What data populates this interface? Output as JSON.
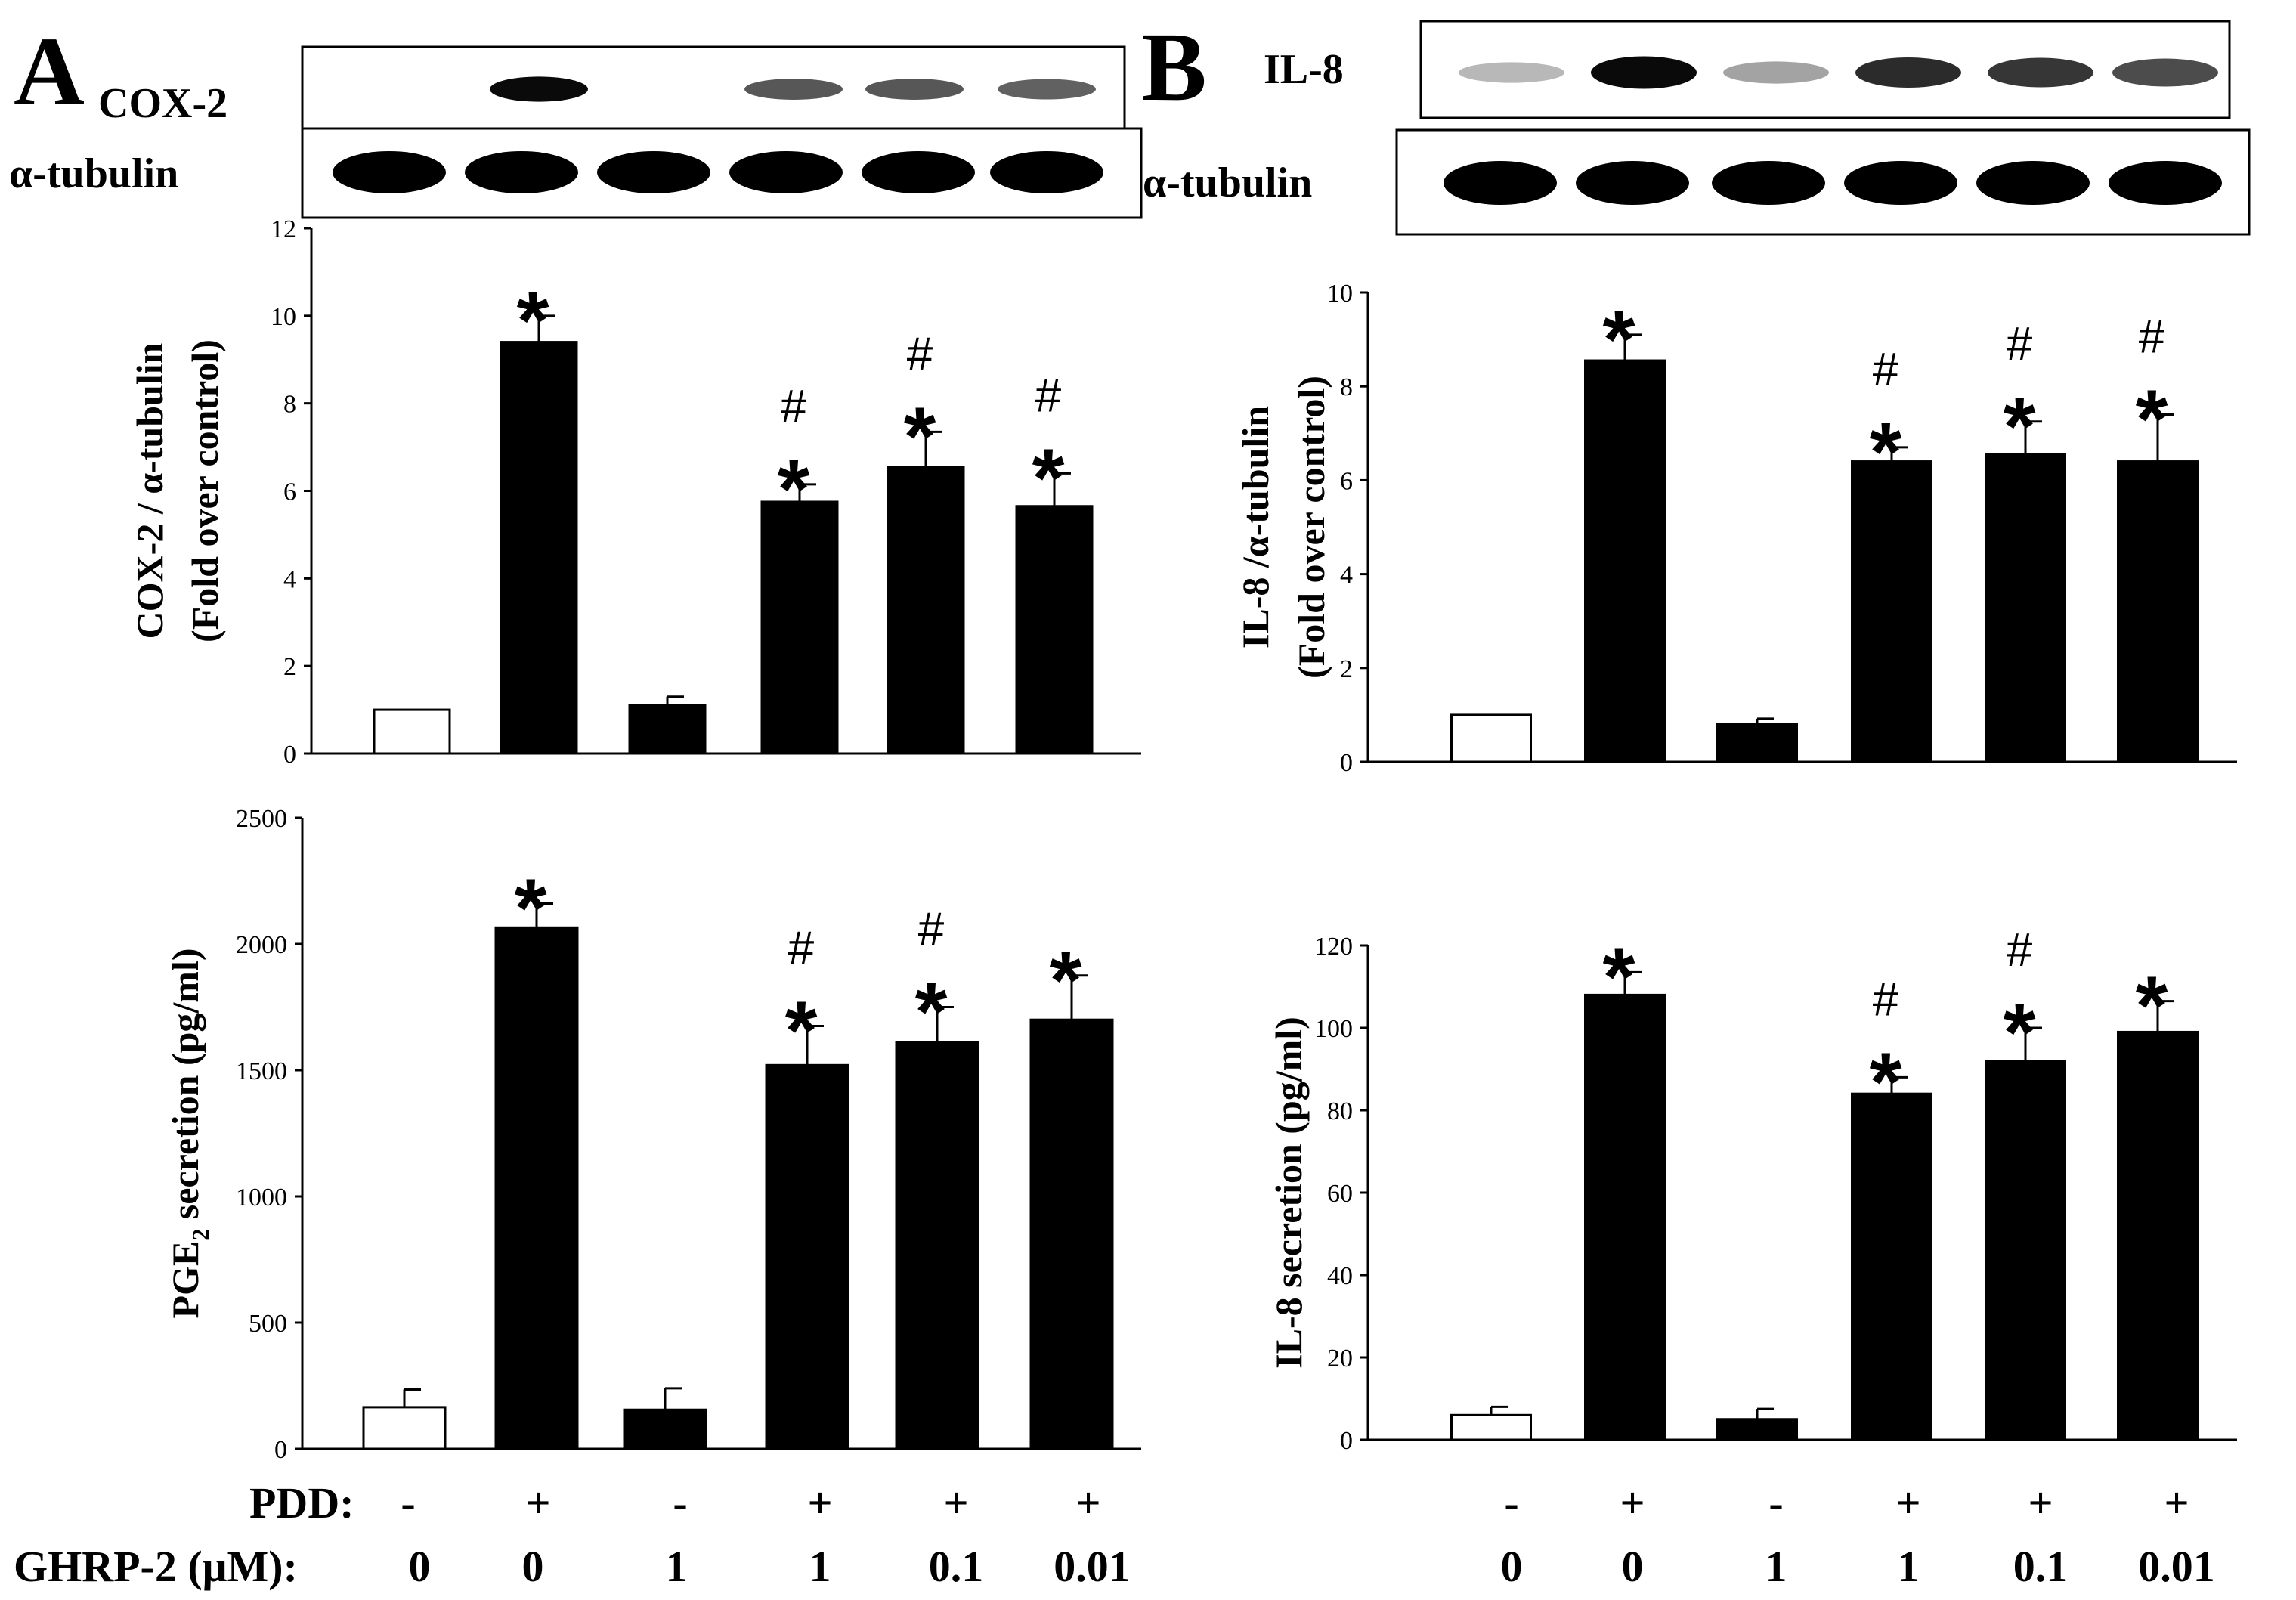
{
  "panels": {
    "A": {
      "letter": "A",
      "blot": {
        "target_label": "COX-2",
        "loading_label": "α-tubulin",
        "target_band_intensity": [
          0,
          0.95,
          0,
          0.6,
          0.6,
          0.55
        ],
        "loading_band_intensity": [
          1,
          1,
          1,
          1,
          1,
          1
        ]
      }
    },
    "B": {
      "letter": "B",
      "blot": {
        "target_label": "IL-8",
        "loading_label": "α-tubulin",
        "target_band_intensity": [
          0.15,
          0.95,
          0.25,
          0.8,
          0.75,
          0.65
        ],
        "loading_band_intensity": [
          1,
          1,
          1,
          1,
          1,
          1
        ]
      }
    }
  },
  "conditions": {
    "pdd_label": "PDD:",
    "ghrp_label": "GHRP-2 (μM):",
    "pdd": [
      "-",
      "+",
      "-",
      "+",
      "+",
      "+"
    ],
    "ghrp": [
      "0",
      "0",
      "1",
      "1",
      "0.1",
      "0.01"
    ]
  },
  "chart_data": [
    {
      "panel": "A",
      "type": "bar",
      "ylabel": "COX-2 / α-tubulin",
      "ylabel2": "(Fold over control)",
      "ylim": [
        0,
        12
      ],
      "yticks": [
        "0",
        "2",
        "4",
        "6",
        "8",
        "10",
        "12"
      ],
      "values": [
        1.0,
        9.4,
        1.1,
        5.75,
        6.55,
        5.65
      ],
      "errors": [
        0,
        0.6,
        0.2,
        0.4,
        0.8,
        0.75
      ],
      "fills": [
        "#ffffff",
        "#000000",
        "#000000",
        "#000000",
        "#000000",
        "#000000"
      ],
      "star": [
        false,
        true,
        false,
        true,
        true,
        true
      ],
      "hash": [
        false,
        false,
        false,
        true,
        true,
        true
      ]
    },
    {
      "panel": "A",
      "type": "bar",
      "ylabel": "PGE",
      "ylabel_sub": "2",
      "ylabel_rest": " secretion (pg/ml)",
      "ylim": [
        0,
        2500
      ],
      "yticks": [
        "0",
        "500",
        "1000",
        "1500",
        "2000",
        "2500"
      ],
      "values": [
        165,
        2065,
        155,
        1520,
        1610,
        1700
      ],
      "errors": [
        70,
        95,
        85,
        155,
        140,
        175
      ],
      "fills": [
        "#ffffff",
        "#000000",
        "#000000",
        "#000000",
        "#000000",
        "#000000"
      ],
      "star": [
        false,
        true,
        false,
        true,
        true,
        true
      ],
      "hash": [
        false,
        false,
        false,
        true,
        true,
        false
      ]
    },
    {
      "panel": "B",
      "type": "bar",
      "ylabel": "IL-8 /α-tubulin",
      "ylabel2": "(Fold over control)",
      "ylim": [
        0,
        10
      ],
      "yticks": [
        "0",
        "2",
        "4",
        "6",
        "8",
        "10"
      ],
      "values": [
        1.0,
        8.55,
        0.8,
        6.4,
        6.55,
        6.4
      ],
      "errors": [
        0,
        0.55,
        0.12,
        0.3,
        0.7,
        1.0
      ],
      "fills": [
        "#ffffff",
        "#000000",
        "#000000",
        "#000000",
        "#000000",
        "#000000"
      ],
      "star": [
        false,
        true,
        false,
        true,
        true,
        true
      ],
      "hash": [
        false,
        false,
        false,
        true,
        true,
        true
      ]
    },
    {
      "panel": "B",
      "type": "bar",
      "ylabel": "IL-8 secretion (pg/ml)",
      "ylim": [
        0,
        120
      ],
      "yticks": [
        "0",
        "20",
        "40",
        "60",
        "80",
        "100",
        "120"
      ],
      "values": [
        6,
        108,
        5,
        84,
        92,
        99
      ],
      "errors": [
        2,
        5.5,
        2.5,
        4,
        8,
        7.5
      ],
      "fills": [
        "#ffffff",
        "#000000",
        "#000000",
        "#000000",
        "#000000",
        "#000000"
      ],
      "star": [
        false,
        true,
        false,
        true,
        true,
        true
      ],
      "hash": [
        false,
        false,
        false,
        true,
        true,
        false
      ]
    }
  ],
  "markers": {
    "star": "*",
    "hash": "#"
  }
}
